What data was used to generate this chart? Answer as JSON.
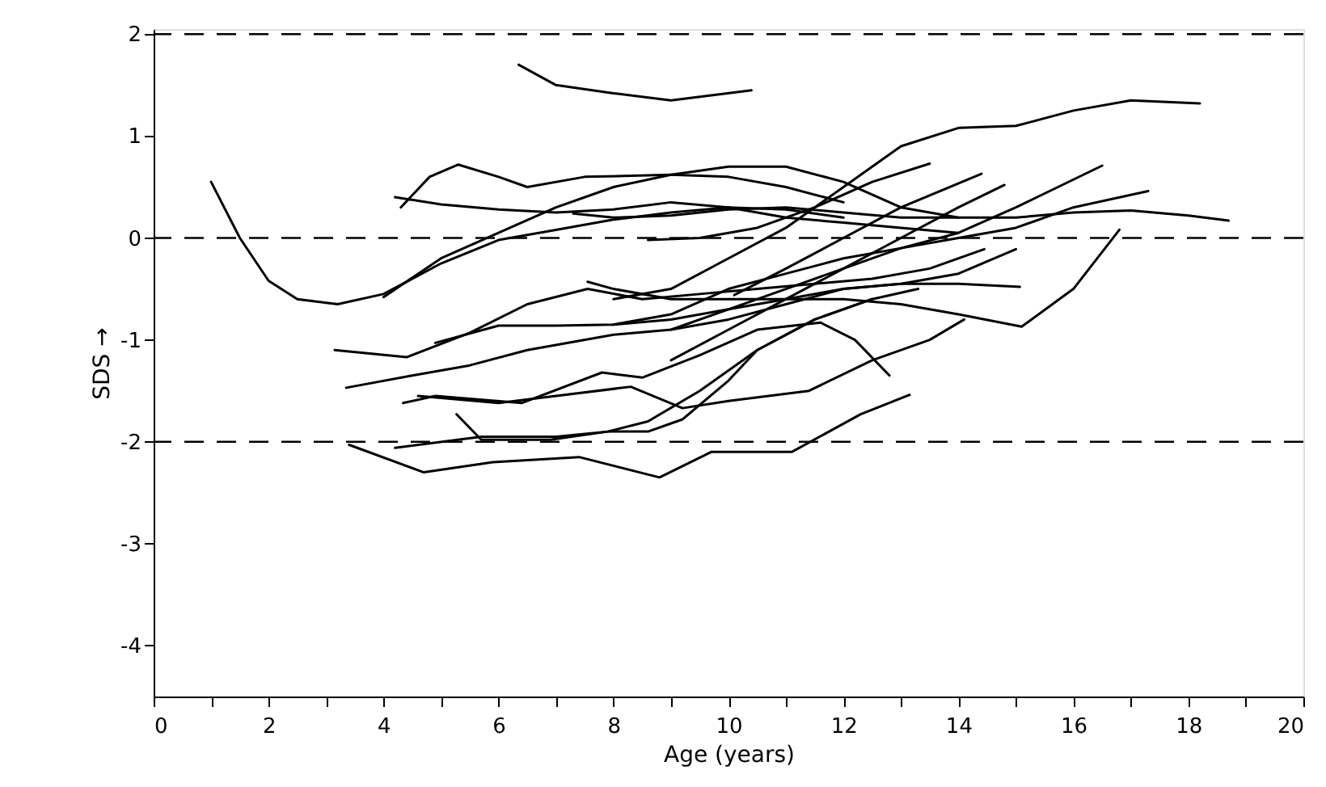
{
  "chart_data": {
    "type": "line",
    "xlabel": "Age (years)",
    "ylabel": "SDS →",
    "xlim": [
      0,
      20
    ],
    "ylim": [
      -4.5,
      2.05
    ],
    "xticks": [
      0,
      {
        "value": 1,
        "label": null
      },
      2,
      {
        "value": 3,
        "label": null
      },
      4,
      {
        "value": 5,
        "label": null
      },
      6,
      {
        "value": 7,
        "label": null
      },
      8,
      {
        "value": 9,
        "label": null
      },
      10,
      {
        "value": 11,
        "label": null
      },
      12,
      {
        "value": 13,
        "label": null
      },
      14,
      {
        "value": 15,
        "label": null
      },
      16,
      {
        "value": 17,
        "label": null
      },
      18,
      {
        "value": 19,
        "label": null
      },
      20
    ],
    "yticks": [
      -4,
      -3,
      -2,
      -1,
      0,
      1,
      2
    ],
    "grid": false,
    "ref_lines": [
      {
        "axis": "y",
        "value": 2,
        "line_style": "dashed"
      },
      {
        "axis": "y",
        "value": 0,
        "line_style": "dashed"
      },
      {
        "axis": "y",
        "value": -2,
        "line_style": "dashed"
      }
    ],
    "series": [
      {
        "color": "#000000",
        "x": [
          6.35,
          7,
          8,
          9,
          9.7,
          10.4
        ],
        "values": [
          1.7,
          1.5,
          1.42,
          1.35,
          1.4,
          1.45
        ]
      },
      {
        "color": "#000000",
        "x": [
          1,
          1.5,
          2,
          2.5,
          3.2,
          4,
          5,
          6,
          7,
          8,
          9,
          10,
          11,
          12
        ],
        "values": [
          0.55,
          0.0,
          -0.42,
          -0.6,
          -0.65,
          -0.55,
          -0.25,
          -0.02,
          0.08,
          0.18,
          0.25,
          0.3,
          0.28,
          0.2
        ]
      },
      {
        "color": "#000000",
        "x": [
          4,
          5,
          6,
          7,
          8,
          9,
          10,
          11,
          12,
          13,
          14
        ],
        "values": [
          -0.58,
          -0.2,
          0.05,
          0.3,
          0.5,
          0.62,
          0.7,
          0.7,
          0.55,
          0.3,
          0.2
        ]
      },
      {
        "color": "#000000",
        "x": [
          4.3,
          4.8,
          5.3,
          6,
          6.5,
          7.5,
          9,
          10,
          11,
          12
        ],
        "values": [
          0.3,
          0.6,
          0.72,
          0.6,
          0.5,
          0.6,
          0.62,
          0.6,
          0.5,
          0.35
        ]
      },
      {
        "color": "#000000",
        "x": [
          4.2,
          5,
          6,
          7,
          8,
          9,
          10,
          11,
          12,
          13,
          14
        ],
        "values": [
          0.4,
          0.33,
          0.28,
          0.25,
          0.28,
          0.35,
          0.3,
          0.2,
          0.15,
          0.1,
          0.05
        ]
      },
      {
        "color": "#000000",
        "x": [
          7.3,
          8,
          9,
          10,
          11,
          12,
          13,
          14,
          15,
          16,
          17,
          18,
          18.7
        ],
        "values": [
          0.24,
          0.2,
          0.22,
          0.28,
          0.3,
          0.25,
          0.2,
          0.2,
          0.2,
          0.25,
          0.27,
          0.22,
          0.17
        ]
      },
      {
        "color": "#000000",
        "x": [
          8.6,
          9.5,
          10.5,
          11.5,
          12.5,
          13.5
        ],
        "values": [
          -0.02,
          0.0,
          0.1,
          0.3,
          0.55,
          0.73
        ]
      },
      {
        "color": "#000000",
        "x": [
          8,
          9,
          10,
          11,
          12,
          13,
          14,
          15,
          16,
          17,
          18.2
        ],
        "values": [
          -0.6,
          -0.5,
          -0.2,
          0.1,
          0.5,
          0.9,
          1.08,
          1.1,
          1.25,
          1.35,
          1.32
        ]
      },
      {
        "color": "#000000",
        "x": [
          10.1,
          11,
          12,
          13,
          14.4
        ],
        "values": [
          -0.56,
          -0.3,
          0.0,
          0.3,
          0.63
        ]
      },
      {
        "color": "#000000",
        "x": [
          9,
          10,
          11,
          12,
          13,
          14,
          14.8
        ],
        "values": [
          -1.2,
          -0.9,
          -0.6,
          -0.3,
          0.0,
          0.3,
          0.52
        ]
      },
      {
        "color": "#000000",
        "x": [
          8,
          9,
          10,
          11,
          12,
          13,
          14,
          15,
          16,
          17.3
        ],
        "values": [
          -0.85,
          -0.75,
          -0.5,
          -0.35,
          -0.2,
          -0.1,
          0.0,
          0.1,
          0.3,
          0.46
        ]
      },
      {
        "color": "#000000",
        "x": [
          9,
          10,
          11,
          12,
          13,
          14,
          15,
          16.5
        ],
        "values": [
          -0.9,
          -0.7,
          -0.5,
          -0.3,
          -0.1,
          0.05,
          0.3,
          0.71
        ]
      },
      {
        "color": "#000000",
        "x": [
          7.55,
          8,
          9,
          10,
          11,
          12,
          13,
          14,
          15.1,
          16,
          16.8
        ],
        "values": [
          -0.43,
          -0.5,
          -0.6,
          -0.6,
          -0.6,
          -0.6,
          -0.65,
          -0.75,
          -0.87,
          -0.5,
          0.08
        ]
      },
      {
        "color": "#000000",
        "x": [
          3.15,
          4.4,
          5.5,
          6.5,
          7.55,
          8.5,
          9.5,
          10.5,
          11.5,
          12.5,
          13.5,
          14.45
        ],
        "values": [
          -1.1,
          -1.17,
          -0.93,
          -0.65,
          -0.5,
          -0.6,
          -0.55,
          -0.5,
          -0.45,
          -0.4,
          -0.3,
          -0.11
        ]
      },
      {
        "color": "#000000",
        "x": [
          4.9,
          6,
          7,
          8,
          9,
          10,
          11,
          12,
          13,
          14,
          15
        ],
        "values": [
          -1.03,
          -0.86,
          -0.86,
          -0.85,
          -0.8,
          -0.7,
          -0.6,
          -0.5,
          -0.45,
          -0.35,
          -0.11
        ]
      },
      {
        "color": "#000000",
        "x": [
          3.35,
          4.5,
          5.5,
          6.5,
          8,
          9,
          10,
          11,
          12,
          13,
          14,
          15.07
        ],
        "values": [
          -1.47,
          -1.35,
          -1.25,
          -1.1,
          -0.95,
          -0.9,
          -0.8,
          -0.65,
          -0.5,
          -0.45,
          -0.45,
          -0.48
        ]
      },
      {
        "color": "#000000",
        "x": [
          4.34,
          4.9,
          6.4,
          7.8,
          8.5,
          9.5,
          10.5,
          11.6,
          12.2,
          12.8
        ],
        "values": [
          -1.62,
          -1.55,
          -1.62,
          -1.32,
          -1.37,
          -1.15,
          -0.9,
          -0.83,
          -1.0,
          -1.35
        ]
      },
      {
        "color": "#000000",
        "x": [
          4.6,
          6,
          7,
          8.3,
          9.2,
          10,
          11.4,
          12.5,
          13.5,
          14.1
        ],
        "values": [
          -1.55,
          -1.62,
          -1.55,
          -1.46,
          -1.67,
          -1.6,
          -1.5,
          -1.2,
          -1.0,
          -0.8
        ]
      },
      {
        "color": "#000000",
        "x": [
          5.27,
          5.7,
          6.9,
          7.9,
          8.6,
          9.5,
          10.5,
          11.5,
          12.5,
          13.3
        ],
        "values": [
          -1.73,
          -1.98,
          -1.98,
          -1.9,
          -1.8,
          -1.5,
          -1.1,
          -0.8,
          -0.6,
          -0.5
        ]
      },
      {
        "color": "#000000",
        "x": [
          4.2,
          5.7,
          7,
          7.9,
          8.6,
          9.2,
          10,
          10.5,
          11.5,
          12.5
        ],
        "values": [
          -2.06,
          -1.95,
          -1.95,
          -1.9,
          -1.9,
          -1.78,
          -1.4,
          -1.1,
          -0.8,
          -0.6
        ]
      },
      {
        "color": "#000000",
        "x": [
          3.4,
          4.7,
          5.9,
          7.4,
          8.8,
          9.7,
          11.1,
          12.3,
          13.15
        ],
        "values": [
          -2.03,
          -2.3,
          -2.2,
          -2.15,
          -2.35,
          -2.1,
          -2.1,
          -1.73,
          -1.54
        ]
      }
    ]
  }
}
